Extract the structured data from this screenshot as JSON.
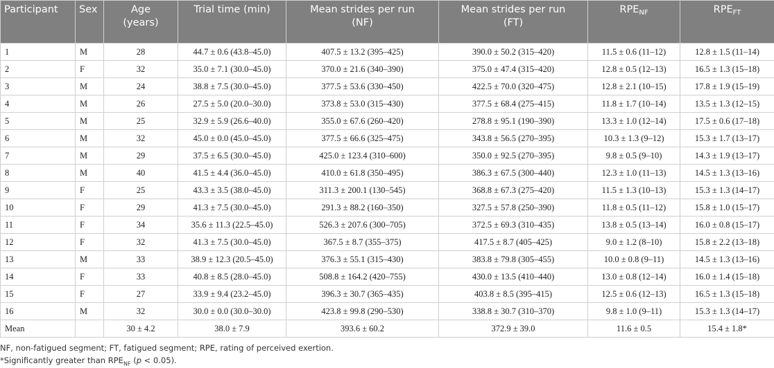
{
  "table": {
    "header": [
      "Participant",
      "Sex",
      "Age (years)",
      "Trial time (min)",
      "Mean strides per run (NF)",
      "Mean strides per run (FT)",
      {
        "text": "RPE",
        "sub": "NF"
      },
      {
        "text": "RPE",
        "sub": "FT"
      }
    ],
    "rows": [
      [
        "1",
        "M",
        "28",
        "44.7 ± 0.6 (43.8–45.0)",
        "407.5 ± 13.2 (395–425)",
        "390.0 ± 50.2 (315–420)",
        "11.5 ± 0.6 (11–12)",
        "12.8 ± 1.5 (11–14)"
      ],
      [
        "2",
        "F",
        "32",
        "35.0 ± 7.1 (30.0–45.0)",
        "370.0 ± 21.6 (340–390)",
        "375.0 ± 47.4 (315–420)",
        "12.8 ± 0.5 (12–13)",
        "16.5 ± 1.3 (15–18)"
      ],
      [
        "3",
        "M",
        "24",
        "38.8 ± 7.5 (30.0–45.0)",
        "377.5 ± 53.6 (330–450)",
        "422.5 ± 70.0 (320–475)",
        "12.8 ± 2.1 (10–15)",
        "17.8 ± 1.9 (15–19)"
      ],
      [
        "4",
        "M",
        "26",
        "27.5 ± 5.0 (20.0–30.0)",
        "373.8 ± 53.0 (315–430)",
        "377.5 ± 68.4 (275–415)",
        "11.8 ± 1.7 (10–14)",
        "13.5 ± 1.3 (12–15)"
      ],
      [
        "5",
        "M",
        "25",
        "32.9 ± 5.9 (26.6–40.0)",
        "355.0 ± 67.6 (260–420)",
        "278.8 ± 95.1 (190–390)",
        "13.3 ± 1.0 (12–14)",
        "17.5 ± 0.6 (17–18)"
      ],
      [
        "6",
        "M",
        "32",
        "45.0 ± 0.0 (45.0–45.0)",
        "377.5 ± 66.6 (325–475)",
        "343.8 ± 56.5 (270–395)",
        "10.3 ± 1.3 (9–12)",
        "15.3 ± 1.7 (13–17)"
      ],
      [
        "7",
        "M",
        "29",
        "37.5 ± 6.5 (30.0–45.0)",
        "425.0 ± 123.4 (310–600)",
        "350.0 ± 92.5 (270–395)",
        "9.8 ± 0.5 (9–10)",
        "14.3 ± 1.9 (13–17)"
      ],
      [
        "8",
        "M",
        "40",
        "41.5 ± 4.4 (36.0–45.0)",
        "410.0 ± 61.8 (350–495)",
        "386.3 ± 67.5 (300–440)",
        "12.3 ± 1.0 (11–13)",
        "14.5 ± 1.3 (13–16)"
      ],
      [
        "9",
        "F",
        "25",
        "43.3 ± 3.5 (38.0–45.0)",
        "311.3 ± 200.1 (130–545)",
        "368.8 ± 67.3 (275–420)",
        "11.5 ± 1.3 (10–13)",
        "15.3 ± 1.3 (14–17)"
      ],
      [
        "10",
        "F",
        "29",
        "41.3 ± 7.5 (30.0–45.0)",
        "291.3 ± 88.2 (160–350)",
        "327.5 ± 57.8 (250–390)",
        "11.8 ± 0.5 (11–12)",
        "15.8 ± 1.0 (15–17)"
      ],
      [
        "11",
        "F",
        "34",
        "35.6 ± 11.3 (22.5–45.0)",
        "526.3 ± 207.6 (300–705)",
        "372.5 ± 69.3 (310–435)",
        "13.8 ± 0.5 (13–14)",
        "16.0 ± 0.8 (15–17)"
      ],
      [
        "12",
        "F",
        "32",
        "41.3 ± 7.5 (30.0–45.0)",
        "367.5 ± 8.7 (355–375)",
        "417.5 ± 8.7 (405–425)",
        "9.0 ± 1.2 (8–10)",
        "15.8 ± 2.2 (13–18)"
      ],
      [
        "13",
        "M",
        "33",
        "38.9 ± 12.3 (20.5–45.0)",
        "376.3 ± 55.1 (315–430)",
        "383.8 ± 79.8 (305–455)",
        "10.0 ± 0.8 (9–11)",
        "14.5 ± 1.3 (13–16)"
      ],
      [
        "14",
        "F",
        "33",
        "40.8 ± 8.5 (28.0–45.0)",
        "508.8 ± 164.2 (420–755)",
        "430.0 ± 13.5 (410–440)",
        "13.0 ± 0.8 (12–14)",
        "16.0 ± 1.4 (15–18)"
      ],
      [
        "15",
        "F",
        "27",
        "33.9 ± 9.4 (23.2–45.0)",
        "396.3 ± 30.7 (365–435)",
        "403.8 ± 8.5 (395–415)",
        "12.5 ± 0.6 (12–13)",
        "16.5 ± 1.3 (15–18)"
      ],
      [
        "16",
        "M",
        "32",
        "30.0 ± 0.0 (30.0–30.0)",
        "423.8 ± 99.8 (290–530)",
        "338.8 ± 30.7 (310–370)",
        "9.8 ± 1.0 (9–11)",
        "15.3 ± 1.3 (14–17)"
      ]
    ],
    "mean_row": {
      "label": "Mean",
      "values": [
        "30 ± 4.2",
        "38.0 ± 7.9",
        "393.6 ± 60.2",
        "372.9 ± 39.0",
        "11.6 ± 0.5",
        "15.4 ± 1.8*"
      ]
    }
  },
  "footnotes": {
    "abbreviations": "NF, non-fatigued segment; FT, fatigued segment; RPE, rating of perceived exertion.",
    "significance": {
      "before": "*Significantly greater than RPE",
      "sub": "NF",
      "mid": " (",
      "italic": "p",
      "after": " < 0.05)."
    }
  }
}
